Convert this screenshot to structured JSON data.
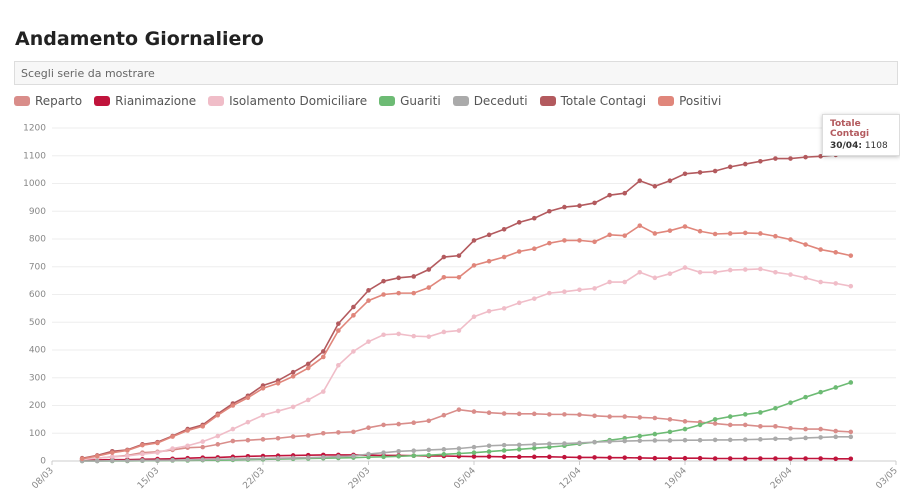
{
  "controls": {
    "select_placeholder": "Scegli serie da mostrare"
  },
  "chart_data": {
    "type": "line",
    "title": "Andamento Giornaliero",
    "x": [
      "10/03",
      "11/03",
      "12/03",
      "13/03",
      "14/03",
      "15/03",
      "16/03",
      "17/03",
      "18/03",
      "19/03",
      "20/03",
      "21/03",
      "22/03",
      "23/03",
      "24/03",
      "25/03",
      "26/03",
      "27/03",
      "28/03",
      "29/03",
      "30/03",
      "31/03",
      "01/04",
      "02/04",
      "03/04",
      "04/04",
      "05/04",
      "06/04",
      "07/04",
      "08/04",
      "09/04",
      "10/04",
      "11/04",
      "12/04",
      "13/04",
      "14/04",
      "15/04",
      "16/04",
      "17/04",
      "18/04",
      "19/04",
      "20/04",
      "21/04",
      "22/04",
      "23/04",
      "24/04",
      "25/04",
      "26/04",
      "27/04",
      "28/04",
      "29/04",
      "30/04"
    ],
    "xlim": [
      "08/03",
      "03/05"
    ],
    "xticks": [
      "08/03",
      "15/03",
      "22/03",
      "29/03",
      "05/04",
      "12/04",
      "19/04",
      "26/04",
      "03/05"
    ],
    "ylim": [
      0,
      1200
    ],
    "yticks": [
      0,
      100,
      200,
      300,
      400,
      500,
      600,
      700,
      800,
      900,
      1000,
      1100,
      1200
    ],
    "grid": true,
    "series": [
      {
        "name": "Reparto",
        "color": "#d98d8a",
        "values": [
          5,
          10,
          15,
          20,
          30,
          33,
          40,
          48,
          50,
          60,
          72,
          75,
          78,
          82,
          88,
          92,
          100,
          103,
          105,
          120,
          130,
          133,
          138,
          145,
          165,
          185,
          178,
          174,
          171,
          170,
          170,
          168,
          168,
          167,
          163,
          160,
          160,
          157,
          155,
          150,
          143,
          140,
          135,
          130,
          130,
          125,
          125,
          118,
          115,
          115,
          108,
          105
        ]
      },
      {
        "name": "Rianimazione",
        "color": "#c0143c",
        "values": [
          3,
          4,
          5,
          5,
          6,
          7,
          8,
          10,
          12,
          13,
          15,
          17,
          18,
          19,
          20,
          21,
          22,
          22,
          22,
          21,
          20,
          20,
          19,
          18,
          18,
          17,
          16,
          16,
          15,
          15,
          15,
          15,
          14,
          13,
          13,
          12,
          12,
          11,
          10,
          10,
          10,
          10,
          9,
          9,
          9,
          9,
          9,
          9,
          9,
          9,
          8,
          8
        ]
      },
      {
        "name": "Isolamento Domiciliare",
        "color": "#f0bdc8",
        "values": [
          5,
          10,
          15,
          18,
          25,
          30,
          45,
          55,
          70,
          90,
          115,
          140,
          165,
          180,
          195,
          220,
          250,
          345,
          395,
          430,
          455,
          458,
          450,
          448,
          465,
          470,
          520,
          540,
          550,
          570,
          585,
          605,
          610,
          617,
          622,
          645,
          645,
          680,
          660,
          675,
          697,
          680,
          680,
          688,
          690,
          692,
          680,
          672,
          660,
          645,
          640,
          630
        ]
      },
      {
        "name": "Guariti",
        "color": "#6dbb74",
        "values": [
          0,
          0,
          0,
          0,
          1,
          1,
          2,
          2,
          3,
          3,
          4,
          5,
          6,
          7,
          8,
          9,
          10,
          11,
          12,
          14,
          15,
          17,
          19,
          21,
          24,
          27,
          30,
          34,
          38,
          42,
          46,
          50,
          55,
          62,
          68,
          75,
          82,
          90,
          97,
          105,
          115,
          130,
          150,
          160,
          168,
          175,
          190,
          210,
          230,
          248,
          265,
          283
        ]
      },
      {
        "name": "Deceduti",
        "color": "#aaaaaa",
        "values": [
          0,
          0,
          1,
          1,
          2,
          2,
          3,
          4,
          5,
          6,
          7,
          8,
          9,
          10,
          11,
          12,
          14,
          16,
          18,
          25,
          30,
          35,
          37,
          40,
          42,
          45,
          50,
          55,
          57,
          58,
          60,
          62,
          63,
          65,
          68,
          70,
          72,
          73,
          74,
          74,
          75,
          75,
          76,
          76,
          77,
          78,
          80,
          80,
          83,
          85,
          87,
          87
        ]
      },
      {
        "name": "Totale Contagi",
        "color": "#b35a5e",
        "values": [
          10,
          20,
          35,
          40,
          60,
          68,
          90,
          115,
          130,
          170,
          207,
          235,
          272,
          290,
          320,
          350,
          395,
          495,
          555,
          615,
          648,
          660,
          665,
          690,
          735,
          740,
          795,
          815,
          835,
          860,
          875,
          900,
          915,
          920,
          930,
          958,
          965,
          1010,
          990,
          1010,
          1035,
          1040,
          1045,
          1060,
          1070,
          1080,
          1090,
          1090,
          1095,
          1098,
          1103,
          1108
        ]
      },
      {
        "name": "Positivi",
        "color": "#e0867b",
        "values": [
          8,
          18,
          30,
          38,
          57,
          65,
          88,
          110,
          125,
          165,
          200,
          228,
          262,
          280,
          305,
          335,
          375,
          470,
          525,
          578,
          600,
          605,
          605,
          625,
          662,
          662,
          705,
          720,
          735,
          755,
          765,
          785,
          795,
          795,
          790,
          815,
          812,
          848,
          820,
          830,
          845,
          828,
          818,
          820,
          822,
          820,
          810,
          798,
          780,
          762,
          752,
          740
        ]
      }
    ]
  }
}
